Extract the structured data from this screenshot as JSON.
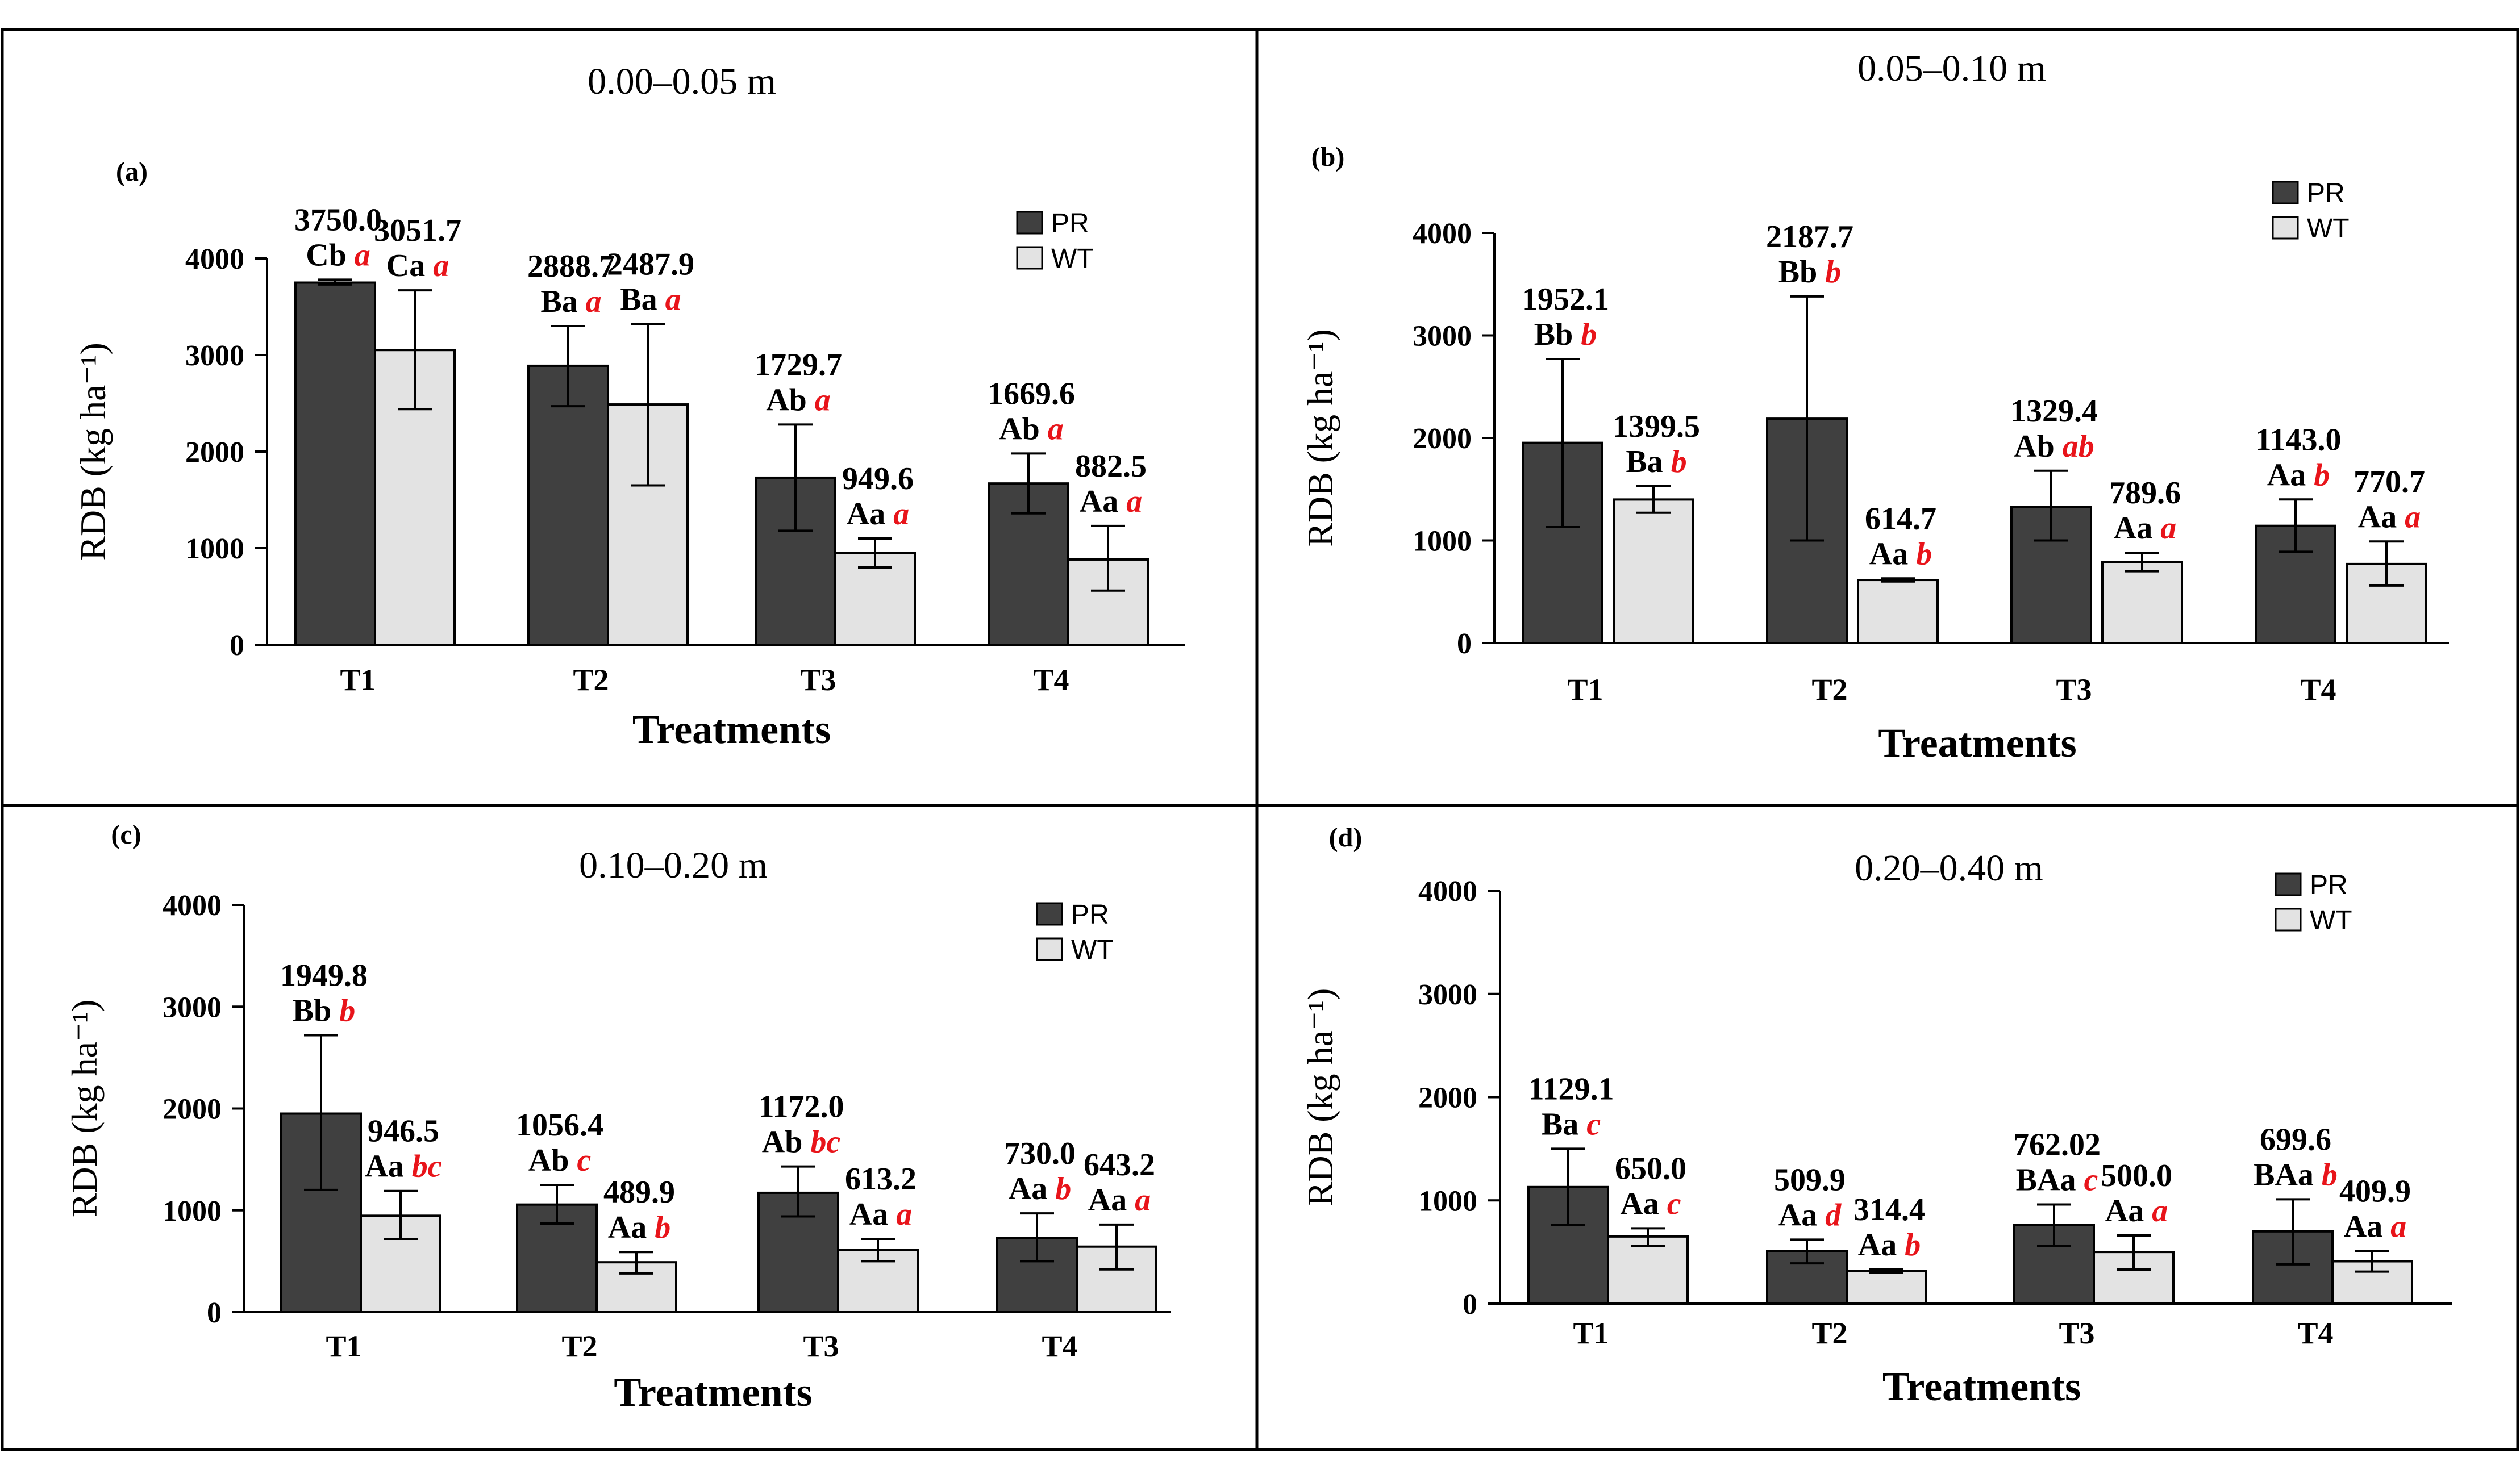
{
  "colors": {
    "pr_fill": "#404040",
    "wt_fill": "#e3e3e3",
    "grade_accent": "#e8141a",
    "text": "#000000",
    "border": "#000000"
  },
  "chart_data": [
    {
      "type": "bar",
      "panel_label": "(a)",
      "title": "0.00–0.05  m",
      "xlabel": "Treatments",
      "ylabel": "RDB (kg ha⁻¹)",
      "yticks": [
        "0",
        "1000",
        "2000",
        "3000",
        "4000"
      ],
      "ylim": [
        0,
        4000
      ],
      "categories": [
        "T1",
        "T2",
        "T3",
        "T4"
      ],
      "series": [
        {
          "name": "PR",
          "values": [
            3750.0,
            2888.7,
            1729.7,
            1669.6
          ],
          "value_labels": [
            "3750.0",
            "2888.7",
            "1729.7",
            "1669.6"
          ],
          "error_low": [
            3730,
            2470,
            1180,
            1360
          ],
          "error_high": [
            3780,
            3300,
            2280,
            1980
          ],
          "letters": [
            "Cb",
            "Ba",
            "Ab",
            "Ab"
          ],
          "grades": [
            "a",
            "a",
            "a",
            "a"
          ]
        },
        {
          "name": "WT",
          "values": [
            3051.7,
            2487.9,
            949.6,
            882.5
          ],
          "value_labels": [
            "3051.7",
            "2487.9",
            "949.6",
            "882.5"
          ],
          "error_low": [
            2440,
            1650,
            800,
            560
          ],
          "error_high": [
            3670,
            3320,
            1100,
            1230
          ],
          "letters": [
            "Ca",
            "Ba",
            "Aa",
            "Aa"
          ],
          "grades": [
            "a",
            "a",
            "a",
            "a"
          ]
        }
      ],
      "legend": [
        "PR",
        "WT"
      ]
    },
    {
      "type": "bar",
      "panel_label": "(b)",
      "title": "0.05–0.10  m",
      "xlabel": "Treatments",
      "ylabel": "RDB (kg ha⁻¹)",
      "yticks": [
        "0",
        "1000",
        "2000",
        "3000",
        "4000"
      ],
      "ylim": [
        0,
        4000
      ],
      "categories": [
        "T1",
        "T2",
        "T3",
        "T4"
      ],
      "series": [
        {
          "name": "PR",
          "values": [
            1952.1,
            2187.7,
            1329.4,
            1143.0
          ],
          "value_labels": [
            "1952.1",
            "2187.7",
            "1329.4",
            "1143.0"
          ],
          "error_low": [
            1130,
            1000,
            1000,
            890
          ],
          "error_high": [
            2770,
            3380,
            1680,
            1400
          ],
          "letters": [
            "Bb",
            "Bb",
            "Ab",
            "Aa"
          ],
          "grades": [
            "b",
            "b",
            "ab",
            "b"
          ]
        },
        {
          "name": "WT",
          "values": [
            1399.5,
            614.7,
            789.6,
            770.7
          ],
          "value_labels": [
            "1399.5",
            "614.7",
            "789.6",
            "770.7"
          ],
          "error_low": [
            1270,
            600,
            700,
            560
          ],
          "error_high": [
            1530,
            630,
            880,
            990
          ],
          "letters": [
            "Ba",
            "Aa",
            "Aa",
            "Aa"
          ],
          "grades": [
            "b",
            "b",
            "a",
            "a"
          ]
        }
      ],
      "legend": [
        "PR",
        "WT"
      ]
    },
    {
      "type": "bar",
      "panel_label": "(c)",
      "title": "0.10–0.20  m",
      "xlabel": "Treatments",
      "ylabel": "RDB (kg ha⁻¹)",
      "yticks": [
        "0",
        "1000",
        "2000",
        "3000",
        "4000"
      ],
      "ylim": [
        0,
        4000
      ],
      "categories": [
        "T1",
        "T2",
        "T3",
        "T4"
      ],
      "series": [
        {
          "name": "PR",
          "values": [
            1949.8,
            1056.4,
            1172.0,
            730.0
          ],
          "value_labels": [
            "1949.8",
            "1056.4",
            "1172.0",
            "730.0"
          ],
          "error_low": [
            1200,
            870,
            940,
            500
          ],
          "error_high": [
            2720,
            1250,
            1430,
            970
          ],
          "letters": [
            "Bb",
            "Ab",
            "Ab",
            "Aa"
          ],
          "grades": [
            "b",
            "c",
            "bc",
            "b"
          ]
        },
        {
          "name": "WT",
          "values": [
            946.5,
            489.9,
            613.2,
            643.2
          ],
          "value_labels": [
            "946.5",
            "489.9",
            "613.2",
            "643.2"
          ],
          "error_low": [
            720,
            380,
            500,
            420
          ],
          "error_high": [
            1190,
            590,
            720,
            860
          ],
          "letters": [
            "Aa",
            "Aa",
            "Aa",
            "Aa"
          ],
          "grades": [
            "bc",
            "b",
            "a",
            "a"
          ]
        }
      ],
      "legend": [
        "PR",
        "WT"
      ]
    },
    {
      "type": "bar",
      "panel_label": "(d)",
      "title": "0.20–0.40  m",
      "xlabel": "Treatments",
      "ylabel": "RDB (kg ha⁻¹)",
      "yticks": [
        "0",
        "1000",
        "2000",
        "3000",
        "4000"
      ],
      "ylim": [
        0,
        4000
      ],
      "categories": [
        "T1",
        "T2",
        "T3",
        "T4"
      ],
      "series": [
        {
          "name": "PR",
          "values": [
            1129.1,
            509.9,
            762.02,
            699.6
          ],
          "value_labels": [
            "1129.1",
            "509.9",
            "762.02",
            "699.6"
          ],
          "error_low": [
            760,
            390,
            560,
            380
          ],
          "error_high": [
            1500,
            620,
            960,
            1010
          ],
          "letters": [
            "Ba",
            "Aa",
            "BAa",
            "BAa"
          ],
          "grades": [
            "c",
            "d",
            "c",
            "b"
          ]
        },
        {
          "name": "WT",
          "values": [
            650.0,
            314.4,
            500.0,
            409.9
          ],
          "value_labels": [
            "650.0",
            "314.4",
            "500.0",
            "409.9"
          ],
          "error_low": [
            560,
            300,
            330,
            310
          ],
          "error_high": [
            730,
            330,
            660,
            510
          ],
          "letters": [
            "Aa",
            "Aa",
            "Aa",
            "Aa"
          ],
          "grades": [
            "c",
            "b",
            "a",
            "a"
          ]
        }
      ],
      "legend": [
        "PR",
        "WT"
      ]
    }
  ]
}
